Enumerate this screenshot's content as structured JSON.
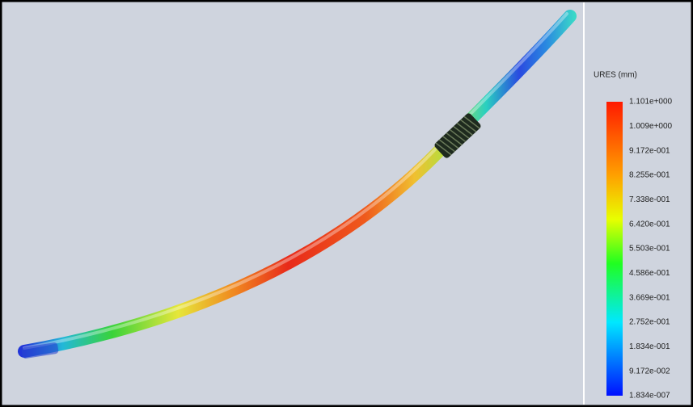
{
  "legend": {
    "title": "URES (mm)",
    "labels": [
      "1.101e+000",
      "1.009e+000",
      "9.172e-001",
      "8.255e-001",
      "7.338e-001",
      "6.420e-001",
      "5.503e-001",
      "4.586e-001",
      "3.669e-001",
      "2.752e-001",
      "1.834e-001",
      "9.172e-002",
      "1.834e-007"
    ]
  }
}
